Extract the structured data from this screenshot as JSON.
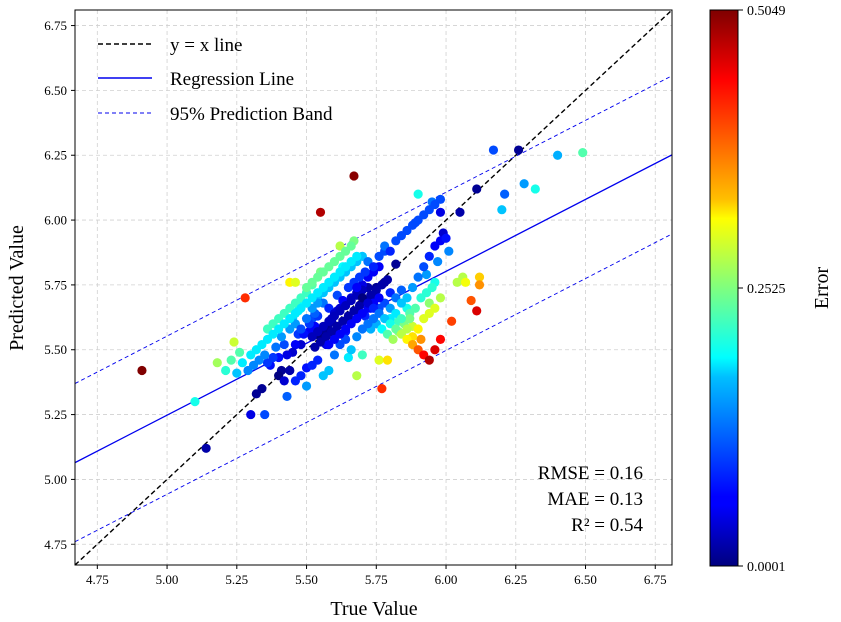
{
  "chart_data": {
    "type": "scatter",
    "xlabel": "True Value",
    "ylabel": "Predicted Value",
    "xlim": [
      4.67,
      6.81
    ],
    "ylim": [
      4.67,
      6.81
    ],
    "xticks": [
      "4.75",
      "5.00",
      "5.25",
      "5.50",
      "5.75",
      "6.00",
      "6.25",
      "6.50",
      "6.75"
    ],
    "yticks": [
      "4.75",
      "5.00",
      "5.25",
      "5.50",
      "5.75",
      "6.00",
      "6.25",
      "6.50",
      "6.75"
    ],
    "grid": true,
    "legend": {
      "placement": "top-left",
      "entries": [
        {
          "label": "y = x line",
          "style": "black-dashed",
          "color": "#000000"
        },
        {
          "label": "Regression Line",
          "style": "solid",
          "color": "#0000ee"
        },
        {
          "label": "95% Prediction Band",
          "style": "blue-dashed",
          "color": "#0000ee"
        }
      ]
    },
    "lines": {
      "identity": {
        "slope": 1,
        "intercept": 0
      },
      "regression": {
        "slope": 0.5546,
        "intercept": 2.4747
      },
      "band_offset": 0.305
    },
    "metrics": [
      "RMSE = 0.16",
      "MAE = 0.13",
      "R² = 0.54"
    ],
    "colorbar": {
      "label": "Error",
      "min": 0.0001,
      "max": 0.5049,
      "ticks": [
        "0.5049",
        "0.2525",
        "0.0001"
      ],
      "colormap": "jet"
    },
    "points": [
      [
        4.91,
        5.42
      ],
      [
        5.14,
        5.12
      ],
      [
        5.1,
        5.3
      ],
      [
        5.18,
        5.45
      ],
      [
        5.21,
        5.42
      ],
      [
        5.23,
        5.46
      ],
      [
        5.24,
        5.53
      ],
      [
        5.26,
        5.49
      ],
      [
        5.28,
        5.7
      ],
      [
        5.3,
        5.25
      ],
      [
        5.32,
        5.33
      ],
      [
        5.34,
        5.35
      ],
      [
        5.35,
        5.25
      ],
      [
        5.37,
        5.44
      ],
      [
        5.39,
        5.51
      ],
      [
        5.41,
        5.42
      ],
      [
        5.43,
        5.32
      ],
      [
        5.44,
        5.76
      ],
      [
        5.46,
        5.76
      ],
      [
        5.47,
        5.56
      ],
      [
        5.5,
        5.43
      ],
      [
        5.52,
        5.62
      ],
      [
        5.55,
        6.03
      ],
      [
        5.55,
        5.8
      ],
      [
        5.57,
        5.52
      ],
      [
        5.59,
        5.61
      ],
      [
        5.61,
        5.71
      ],
      [
        5.62,
        5.9
      ],
      [
        5.63,
        5.82
      ],
      [
        5.65,
        5.47
      ],
      [
        5.67,
        6.17
      ],
      [
        5.67,
        5.92
      ],
      [
        5.68,
        5.4
      ],
      [
        5.69,
        5.64
      ],
      [
        5.7,
        5.48
      ],
      [
        5.72,
        5.74
      ],
      [
        5.73,
        5.58
      ],
      [
        5.75,
        5.74
      ],
      [
        5.76,
        5.46
      ],
      [
        5.77,
        5.35
      ],
      [
        5.78,
        5.88
      ],
      [
        5.79,
        5.46
      ],
      [
        5.8,
        5.62
      ],
      [
        5.82,
        5.83
      ],
      [
        5.84,
        5.73
      ],
      [
        5.86,
        5.66
      ],
      [
        5.88,
        5.59
      ],
      [
        5.89,
        5.99
      ],
      [
        5.9,
        6.1
      ],
      [
        5.91,
        5.54
      ],
      [
        5.93,
        5.79
      ],
      [
        5.94,
        5.68
      ],
      [
        5.95,
        6.07
      ],
      [
        5.96,
        5.76
      ],
      [
        5.98,
        6.03
      ],
      [
        5.99,
        5.95
      ],
      [
        6.01,
        5.88
      ],
      [
        6.02,
        5.61
      ],
      [
        6.04,
        5.76
      ],
      [
        6.06,
        5.78
      ],
      [
        6.07,
        5.76
      ],
      [
        6.09,
        5.69
      ],
      [
        6.11,
        5.65
      ],
      [
        6.12,
        5.78
      ],
      [
        6.12,
        5.75
      ],
      [
        6.17,
        6.27
      ],
      [
        6.2,
        6.04
      ],
      [
        6.21,
        6.1
      ],
      [
        6.26,
        6.27
      ],
      [
        6.28,
        6.14
      ],
      [
        6.32,
        6.12
      ],
      [
        6.4,
        6.25
      ],
      [
        6.49,
        6.26
      ],
      [
        6.11,
        6.12
      ],
      [
        6.05,
        6.03
      ],
      [
        5.97,
        5.84
      ],
      [
        5.87,
        5.64
      ],
      [
        5.83,
        5.61
      ],
      [
        5.74,
        5.71
      ],
      [
        5.71,
        5.63
      ],
      [
        5.66,
        5.61
      ],
      [
        5.64,
        5.57
      ],
      [
        5.6,
        5.56
      ],
      [
        5.58,
        5.6
      ],
      [
        5.56,
        5.57
      ],
      [
        5.54,
        5.63
      ],
      [
        5.53,
        5.59
      ],
      [
        5.51,
        5.57
      ],
      [
        5.49,
        5.56
      ],
      [
        5.48,
        5.52
      ],
      [
        5.46,
        5.52
      ],
      [
        5.45,
        5.49
      ],
      [
        5.43,
        5.48
      ],
      [
        5.42,
        5.52
      ],
      [
        5.41,
        5.55
      ],
      [
        5.4,
        5.47
      ],
      [
        5.38,
        5.47
      ],
      [
        5.36,
        5.45
      ],
      [
        5.35,
        5.48
      ],
      [
        5.33,
        5.46
      ],
      [
        5.31,
        5.44
      ],
      [
        5.29,
        5.42
      ],
      [
        5.27,
        5.45
      ],
      [
        5.25,
        5.41
      ],
      [
        5.5,
        5.72
      ],
      [
        5.52,
        5.75
      ],
      [
        5.54,
        5.7
      ],
      [
        5.56,
        5.68
      ],
      [
        5.58,
        5.66
      ],
      [
        5.6,
        5.64
      ],
      [
        5.62,
        5.66
      ],
      [
        5.64,
        5.68
      ],
      [
        5.66,
        5.7
      ],
      [
        5.68,
        5.72
      ],
      [
        5.7,
        5.75
      ],
      [
        5.72,
        5.78
      ],
      [
        5.74,
        5.8
      ],
      [
        5.76,
        5.82
      ],
      [
        5.78,
        5.76
      ],
      [
        5.8,
        5.72
      ],
      [
        5.82,
        5.7
      ],
      [
        5.84,
        5.68
      ],
      [
        5.86,
        5.7
      ],
      [
        5.88,
        5.74
      ],
      [
        5.9,
        5.78
      ],
      [
        5.92,
        5.82
      ],
      [
        5.94,
        5.86
      ],
      [
        5.96,
        5.9
      ],
      [
        5.98,
        5.92
      ],
      [
        6.0,
        5.93
      ],
      [
        5.45,
        5.62
      ],
      [
        5.47,
        5.65
      ],
      [
        5.49,
        5.68
      ],
      [
        5.51,
        5.6
      ],
      [
        5.53,
        5.64
      ],
      [
        5.55,
        5.55
      ],
      [
        5.57,
        5.58
      ],
      [
        5.59,
        5.62
      ],
      [
        5.61,
        5.65
      ],
      [
        5.63,
        5.69
      ],
      [
        5.65,
        5.74
      ],
      [
        5.67,
        5.76
      ],
      [
        5.69,
        5.78
      ],
      [
        5.71,
        5.8
      ],
      [
        5.73,
        5.66
      ],
      [
        5.75,
        5.6
      ],
      [
        5.77,
        5.58
      ],
      [
        5.79,
        5.56
      ],
      [
        5.81,
        5.54
      ],
      [
        5.83,
        5.57
      ],
      [
        5.85,
        5.6
      ],
      [
        5.87,
        5.62
      ],
      [
        5.89,
        5.66
      ],
      [
        5.91,
        5.7
      ],
      [
        5.93,
        5.72
      ],
      [
        5.95,
        5.74
      ],
      [
        5.4,
        5.4
      ],
      [
        5.42,
        5.38
      ],
      [
        5.44,
        5.42
      ],
      [
        5.46,
        5.38
      ],
      [
        5.48,
        5.4
      ],
      [
        5.5,
        5.36
      ],
      [
        5.52,
        5.44
      ],
      [
        5.54,
        5.46
      ],
      [
        5.56,
        5.4
      ],
      [
        5.58,
        5.42
      ],
      [
        5.6,
        5.48
      ],
      [
        5.62,
        5.52
      ],
      [
        5.64,
        5.54
      ],
      [
        5.66,
        5.5
      ],
      [
        5.68,
        5.55
      ],
      [
        5.7,
        5.58
      ],
      [
        5.72,
        5.6
      ],
      [
        5.74,
        5.62
      ],
      [
        5.76,
        5.66
      ],
      [
        5.78,
        5.68
      ],
      [
        5.8,
        5.66
      ],
      [
        5.82,
        5.64
      ],
      [
        5.84,
        5.62
      ],
      [
        5.86,
        5.58
      ],
      [
        5.88,
        5.55
      ],
      [
        5.9,
        5.58
      ],
      [
        5.92,
        5.62
      ],
      [
        5.94,
        5.64
      ],
      [
        5.96,
        5.66
      ],
      [
        5.98,
        5.7
      ],
      [
        5.53,
        5.51
      ],
      [
        5.55,
        5.53
      ],
      [
        5.57,
        5.55
      ],
      [
        5.59,
        5.57
      ],
      [
        5.61,
        5.59
      ],
      [
        5.63,
        5.61
      ],
      [
        5.65,
        5.63
      ],
      [
        5.67,
        5.65
      ],
      [
        5.69,
        5.67
      ],
      [
        5.71,
        5.69
      ],
      [
        5.73,
        5.71
      ],
      [
        5.75,
        5.73
      ],
      [
        5.77,
        5.75
      ],
      [
        5.79,
        5.77
      ],
      [
        5.58,
        5.52
      ],
      [
        5.6,
        5.54
      ],
      [
        5.62,
        5.56
      ],
      [
        5.64,
        5.58
      ],
      [
        5.66,
        5.6
      ],
      [
        5.68,
        5.62
      ],
      [
        5.7,
        5.64
      ],
      [
        5.72,
        5.66
      ],
      [
        5.74,
        5.68
      ],
      [
        5.76,
        5.7
      ],
      [
        5.52,
        5.55
      ],
      [
        5.54,
        5.57
      ],
      [
        5.56,
        5.59
      ],
      [
        5.58,
        5.61
      ],
      [
        5.6,
        5.63
      ],
      [
        5.62,
        5.65
      ],
      [
        5.64,
        5.67
      ],
      [
        5.66,
        5.69
      ],
      [
        5.68,
        5.71
      ],
      [
        5.7,
        5.73
      ],
      [
        5.44,
        5.58
      ],
      [
        5.46,
        5.6
      ],
      [
        5.48,
        5.58
      ],
      [
        5.5,
        5.62
      ],
      [
        5.52,
        5.66
      ],
      [
        5.54,
        5.68
      ],
      [
        5.56,
        5.72
      ],
      [
        5.58,
        5.74
      ],
      [
        5.6,
        5.76
      ],
      [
        5.62,
        5.78
      ],
      [
        5.64,
        5.8
      ],
      [
        5.66,
        5.82
      ],
      [
        5.68,
        5.84
      ],
      [
        5.7,
        5.86
      ],
      [
        5.72,
        5.84
      ],
      [
        5.74,
        5.82
      ],
      [
        5.76,
        5.86
      ],
      [
        5.78,
        5.9
      ],
      [
        5.8,
        5.88
      ],
      [
        5.82,
        5.92
      ],
      [
        5.84,
        5.94
      ],
      [
        5.86,
        5.96
      ],
      [
        5.88,
        5.98
      ],
      [
        5.9,
        6.0
      ],
      [
        5.92,
        6.02
      ],
      [
        5.94,
        6.04
      ],
      [
        5.96,
        6.06
      ],
      [
        5.98,
        6.08
      ],
      [
        5.36,
        5.58
      ],
      [
        5.38,
        5.6
      ],
      [
        5.4,
        5.62
      ],
      [
        5.42,
        5.64
      ],
      [
        5.44,
        5.66
      ],
      [
        5.46,
        5.68
      ],
      [
        5.48,
        5.7
      ],
      [
        5.5,
        5.74
      ],
      [
        5.52,
        5.76
      ],
      [
        5.54,
        5.78
      ],
      [
        5.56,
        5.8
      ],
      [
        5.58,
        5.82
      ],
      [
        5.6,
        5.84
      ],
      [
        5.62,
        5.86
      ],
      [
        5.64,
        5.88
      ],
      [
        5.66,
        5.9
      ],
      [
        5.68,
        5.74
      ],
      [
        5.7,
        5.7
      ],
      [
        5.72,
        5.68
      ],
      [
        5.74,
        5.66
      ],
      [
        5.76,
        5.64
      ],
      [
        5.78,
        5.62
      ],
      [
        5.8,
        5.6
      ],
      [
        5.82,
        5.58
      ],
      [
        5.84,
        5.56
      ],
      [
        5.86,
        5.54
      ],
      [
        5.88,
        5.52
      ],
      [
        5.9,
        5.5
      ],
      [
        5.92,
        5.48
      ],
      [
        5.94,
        5.46
      ],
      [
        5.96,
        5.5
      ],
      [
        5.98,
        5.54
      ],
      [
        5.3,
        5.48
      ],
      [
        5.32,
        5.5
      ],
      [
        5.34,
        5.52
      ],
      [
        5.36,
        5.54
      ],
      [
        5.38,
        5.56
      ],
      [
        5.4,
        5.58
      ],
      [
        5.42,
        5.6
      ],
      [
        5.44,
        5.62
      ],
      [
        5.46,
        5.64
      ],
      [
        5.48,
        5.66
      ],
      [
        5.5,
        5.68
      ],
      [
        5.52,
        5.7
      ],
      [
        5.54,
        5.72
      ],
      [
        5.56,
        5.74
      ],
      [
        5.58,
        5.76
      ],
      [
        5.6,
        5.78
      ],
      [
        5.62,
        5.8
      ],
      [
        5.64,
        5.82
      ],
      [
        5.66,
        5.84
      ],
      [
        5.68,
        5.86
      ]
    ]
  }
}
